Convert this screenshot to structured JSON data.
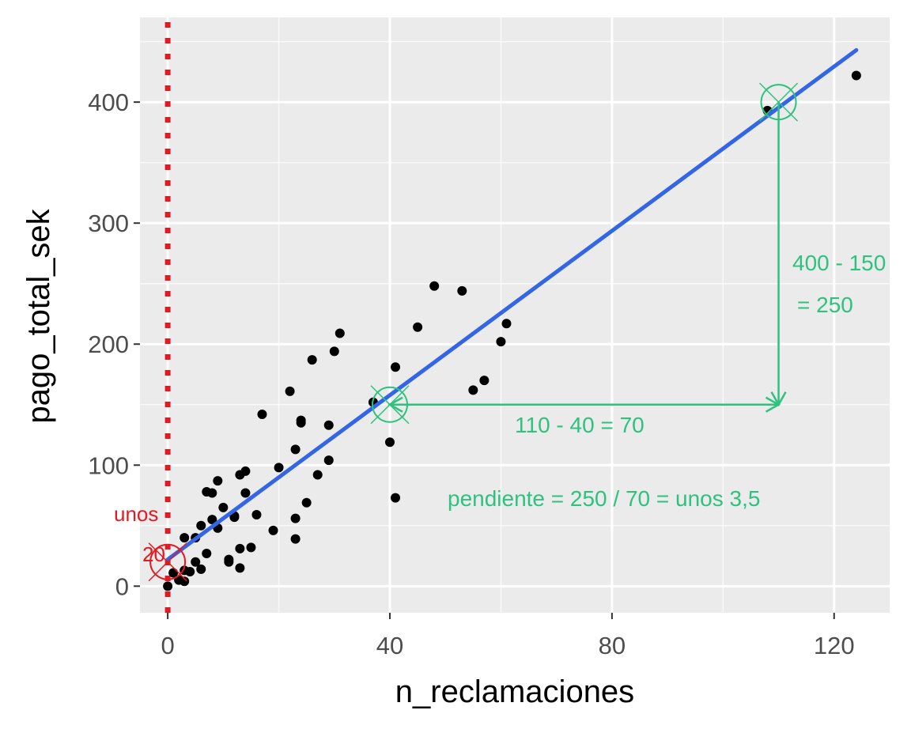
{
  "chart_data": {
    "type": "scatter",
    "xlabel": "n_reclamaciones",
    "ylabel": "pago_total_sek",
    "xlim": [
      -5,
      130
    ],
    "ylim": [
      -22,
      470
    ],
    "xticks": [
      0,
      40,
      80,
      120
    ],
    "yticks": [
      0,
      100,
      200,
      300,
      400
    ],
    "grid": true,
    "points": [
      {
        "x": 0,
        "y": 0
      },
      {
        "x": 1,
        "y": 11
      },
      {
        "x": 2,
        "y": 5
      },
      {
        "x": 3,
        "y": 4
      },
      {
        "x": 3,
        "y": 13
      },
      {
        "x": 3,
        "y": 40
      },
      {
        "x": 4,
        "y": 12
      },
      {
        "x": 5,
        "y": 20
      },
      {
        "x": 5,
        "y": 40
      },
      {
        "x": 6,
        "y": 14
      },
      {
        "x": 6,
        "y": 50
      },
      {
        "x": 7,
        "y": 27
      },
      {
        "x": 7,
        "y": 78
      },
      {
        "x": 8,
        "y": 77
      },
      {
        "x": 8,
        "y": 55
      },
      {
        "x": 9,
        "y": 48
      },
      {
        "x": 9,
        "y": 87
      },
      {
        "x": 10,
        "y": 65
      },
      {
        "x": 11,
        "y": 22
      },
      {
        "x": 11,
        "y": 20
      },
      {
        "x": 12,
        "y": 57
      },
      {
        "x": 12,
        "y": 58
      },
      {
        "x": 13,
        "y": 31
      },
      {
        "x": 13,
        "y": 15
      },
      {
        "x": 13,
        "y": 92
      },
      {
        "x": 14,
        "y": 95
      },
      {
        "x": 14,
        "y": 77
      },
      {
        "x": 15,
        "y": 32
      },
      {
        "x": 16,
        "y": 59
      },
      {
        "x": 17,
        "y": 142
      },
      {
        "x": 19,
        "y": 46
      },
      {
        "x": 20,
        "y": 98
      },
      {
        "x": 22,
        "y": 161
      },
      {
        "x": 23,
        "y": 113
      },
      {
        "x": 23,
        "y": 56
      },
      {
        "x": 23,
        "y": 39
      },
      {
        "x": 24,
        "y": 137
      },
      {
        "x": 24,
        "y": 135
      },
      {
        "x": 25,
        "y": 69
      },
      {
        "x": 26,
        "y": 187
      },
      {
        "x": 27,
        "y": 92
      },
      {
        "x": 29,
        "y": 104
      },
      {
        "x": 29,
        "y": 133
      },
      {
        "x": 30,
        "y": 194
      },
      {
        "x": 31,
        "y": 209
      },
      {
        "x": 37,
        "y": 152
      },
      {
        "x": 40,
        "y": 119
      },
      {
        "x": 41,
        "y": 181
      },
      {
        "x": 41,
        "y": 73
      },
      {
        "x": 45,
        "y": 214
      },
      {
        "x": 48,
        "y": 248
      },
      {
        "x": 53,
        "y": 244
      },
      {
        "x": 55,
        "y": 162
      },
      {
        "x": 57,
        "y": 170
      },
      {
        "x": 60,
        "y": 202
      },
      {
        "x": 61,
        "y": 217
      },
      {
        "x": 108,
        "y": 393
      },
      {
        "x": 124,
        "y": 422
      }
    ],
    "trend_line": {
      "x": [
        0,
        124
      ],
      "y": [
        22,
        443
      ],
      "color": "#3366e6"
    },
    "vline": {
      "x": 0,
      "color": "#e01b24",
      "style": "dotted"
    },
    "markers": [
      {
        "x": 0,
        "y": 20,
        "color": "#e01b24"
      },
      {
        "x": 40,
        "y": 150,
        "color": "#2ec27e"
      },
      {
        "x": 110,
        "y": 400,
        "color": "#2ec27e"
      }
    ],
    "annotations": {
      "horizontal_label": "110 - 40 = 70",
      "vertical_label_line1": "400 - 150",
      "vertical_label_line2": "= 250",
      "slope_label": "pendiente = 250 / 70 = unos 3,5",
      "intercept_line1": "unos",
      "intercept_line2": "20"
    },
    "colors": {
      "panel": "#ebebeb",
      "grid_major": "#ffffff",
      "point": "#000000",
      "annotation_green": "#2ec27e",
      "annotation_red": "#e01b24"
    }
  }
}
